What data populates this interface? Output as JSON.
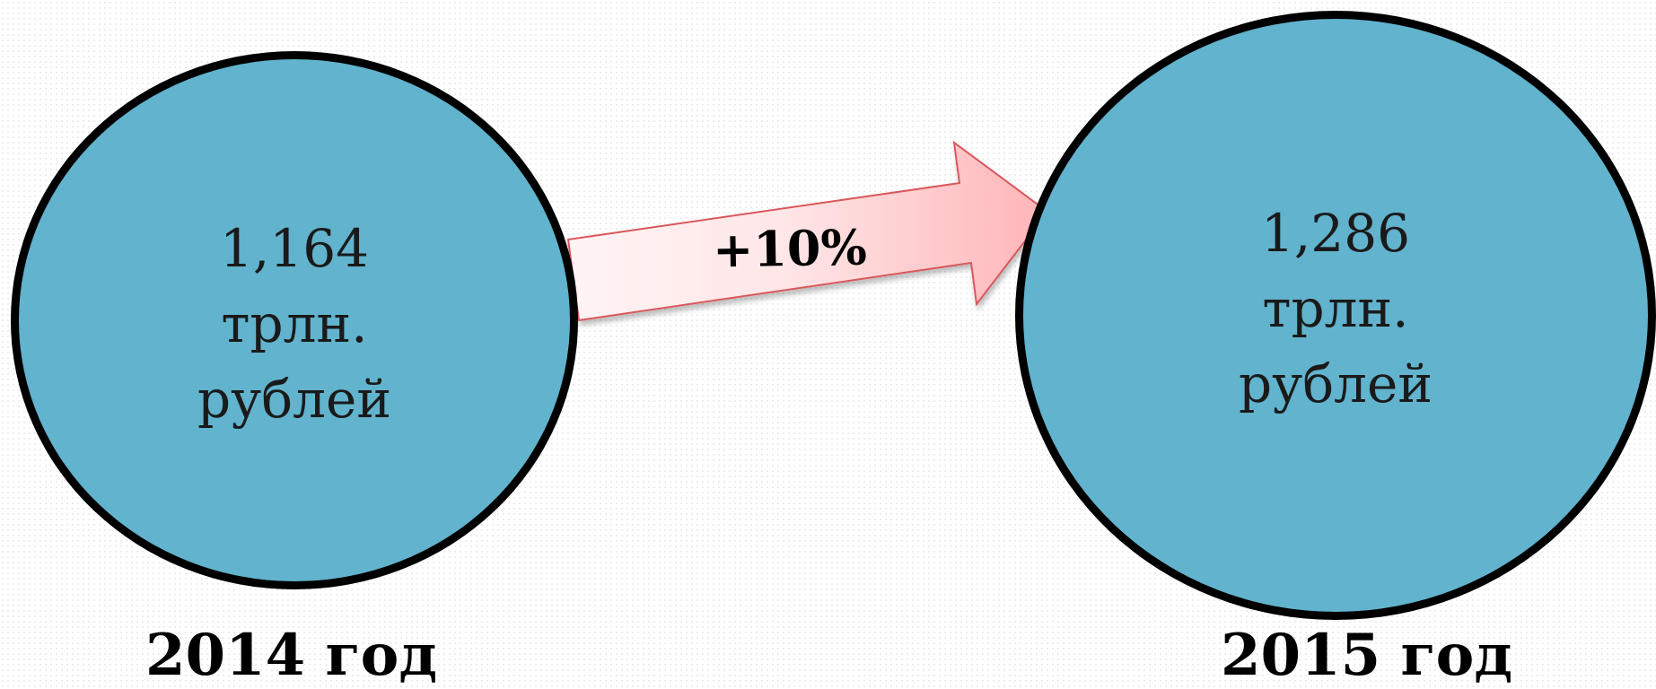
{
  "colors": {
    "circle_fill": "#62b3cd",
    "circle_border": "#000000",
    "arrow_fill_light": "#fff4f4",
    "arrow_fill_dark": "#ffb5b8",
    "arrow_stroke": "#d9585c"
  },
  "diagram": {
    "left_node": {
      "value": "1,164",
      "unit_line1": "трлн.",
      "unit_line2": "рублей",
      "year_label": "2014 год"
    },
    "right_node": {
      "value": "1,286",
      "unit_line1": "трлн.",
      "unit_line2": "рублей",
      "year_label": "2015 год"
    },
    "arrow": {
      "label": "+10%"
    }
  }
}
